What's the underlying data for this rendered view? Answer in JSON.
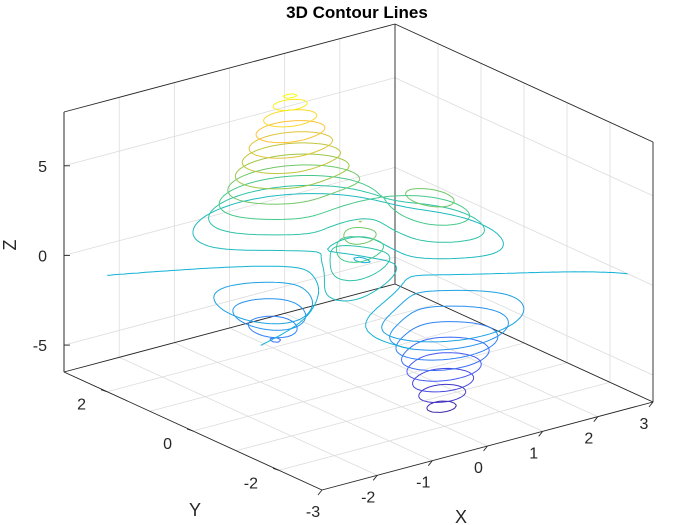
{
  "chart_data": {
    "type": "contour3",
    "title": "3D Contour Lines",
    "xlabel": "X",
    "ylabel": "Y",
    "zlabel": "Z",
    "xlim": [
      -3,
      3
    ],
    "ylim": [
      -3,
      3
    ],
    "zlim": [
      -6.5,
      8
    ],
    "x_ticks": [
      "-3",
      "-2",
      "-1",
      "0",
      "1",
      "2",
      "3"
    ],
    "y_ticks": [
      "-2",
      "0",
      "2"
    ],
    "z_ticks": [
      "-5",
      "0",
      "5"
    ],
    "grid": true,
    "colormap": "parula",
    "function": "peaks",
    "levels": [
      -6,
      -5.25,
      -4.5,
      -3.75,
      -3,
      -2.25,
      -1.5,
      -0.75,
      0,
      0.75,
      1.5,
      2.25,
      3,
      3.75,
      4.5,
      5.25,
      6,
      6.75,
      7.5,
      8
    ]
  }
}
